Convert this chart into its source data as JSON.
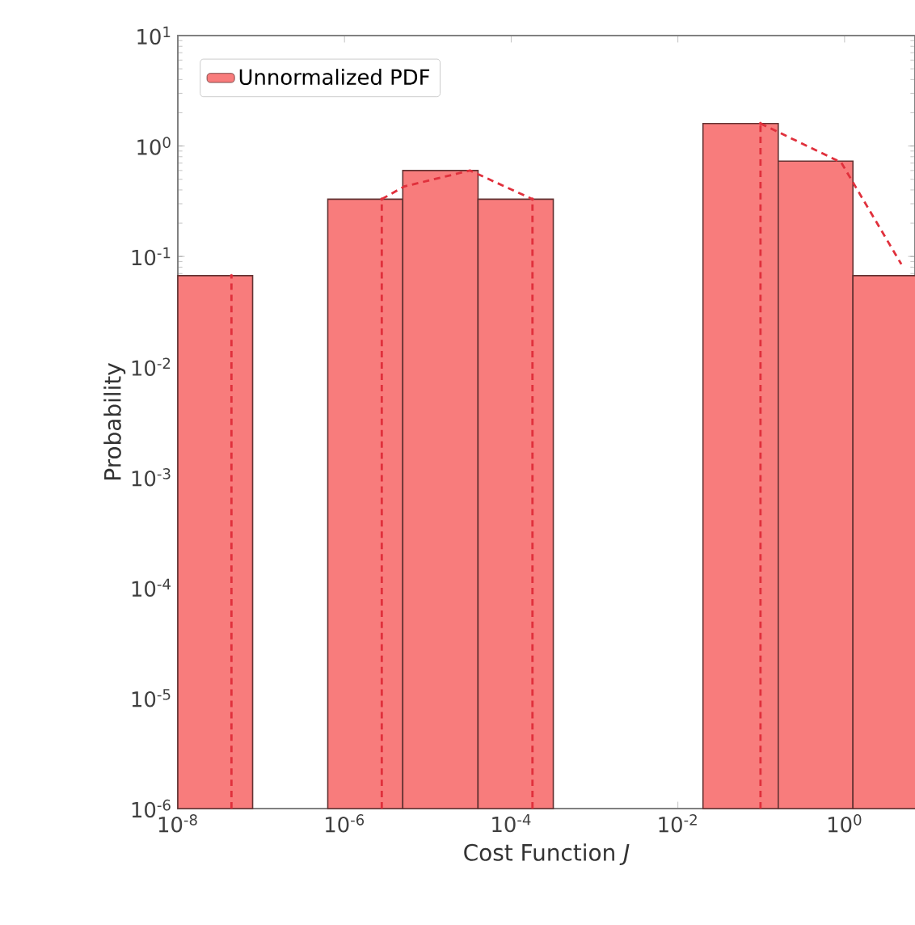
{
  "chart_data": {
    "type": "histogram",
    "xlabel": "Cost Function *J*",
    "ylabel": "Probability",
    "log": "xy",
    "legend": "top left",
    "grid": false,
    "xlim": [
      1e-08,
      7
    ],
    "ylim": [
      1e-06,
      10
    ],
    "xticks": [
      {
        "value": 1e-08,
        "label": "10$^{-8}$"
      },
      {
        "value": 1e-06,
        "label": "10$^{-6}$"
      },
      {
        "value": 0.0001,
        "label": "10$^{-4}$"
      },
      {
        "value": 0.01,
        "label": "10$^{-2}$"
      },
      {
        "value": 1,
        "label": "10$^{0}$"
      }
    ],
    "yticks": [
      {
        "value": 1e-06,
        "label": "10$^{-6}$"
      },
      {
        "value": 1e-05,
        "label": "10$^{-5}$"
      },
      {
        "value": 0.0001,
        "label": "10$^{-4}$"
      },
      {
        "value": 0.001,
        "label": "10$^{-3}$"
      },
      {
        "value": 0.01,
        "label": "10$^{-2}$"
      },
      {
        "value": 0.1,
        "label": "10$^{-1}$"
      },
      {
        "value": 1,
        "label": "10$^{0}$"
      },
      {
        "value": 10,
        "label": "10$^{1}$"
      }
    ],
    "series": [
      {
        "name": "Unnormalized PDF",
        "color": "#f87c7c",
        "bins": [
          1e-08,
          7.9e-08,
          6.3e-07,
          5e-06,
          4e-05,
          0.00032,
          0.02,
          0.16,
          1.26,
          10
        ],
        "values": [
          0.067,
          null,
          0.33,
          0.6,
          0.33,
          null,
          1.6,
          0.73,
          0.067
        ]
      },
      {
        "type": "lollipop",
        "color": "#e0303c",
        "line_style": "dashed",
        "x": [
          4.4e-08,
          2.8e-06,
          0.00018,
          0.098
        ],
        "values": [
          0.067,
          0.33,
          0.33,
          1.6
        ]
      },
      {
        "type": "line",
        "color": "#e0303c",
        "line_style": "dashed",
        "marker": "none",
        "x": [
          2.8e-06,
          5.2e-06,
          3.2e-05,
          0.00018
        ],
        "values": [
          0.33,
          0.43,
          0.6,
          0.33
        ]
      },
      {
        "type": "line",
        "color": "#e0303c",
        "line_style": "dashed",
        "marker": "none",
        "x": [
          0.098,
          0.91,
          4.8
        ],
        "values": [
          1.6,
          0.71,
          0.085
        ]
      }
    ]
  }
}
